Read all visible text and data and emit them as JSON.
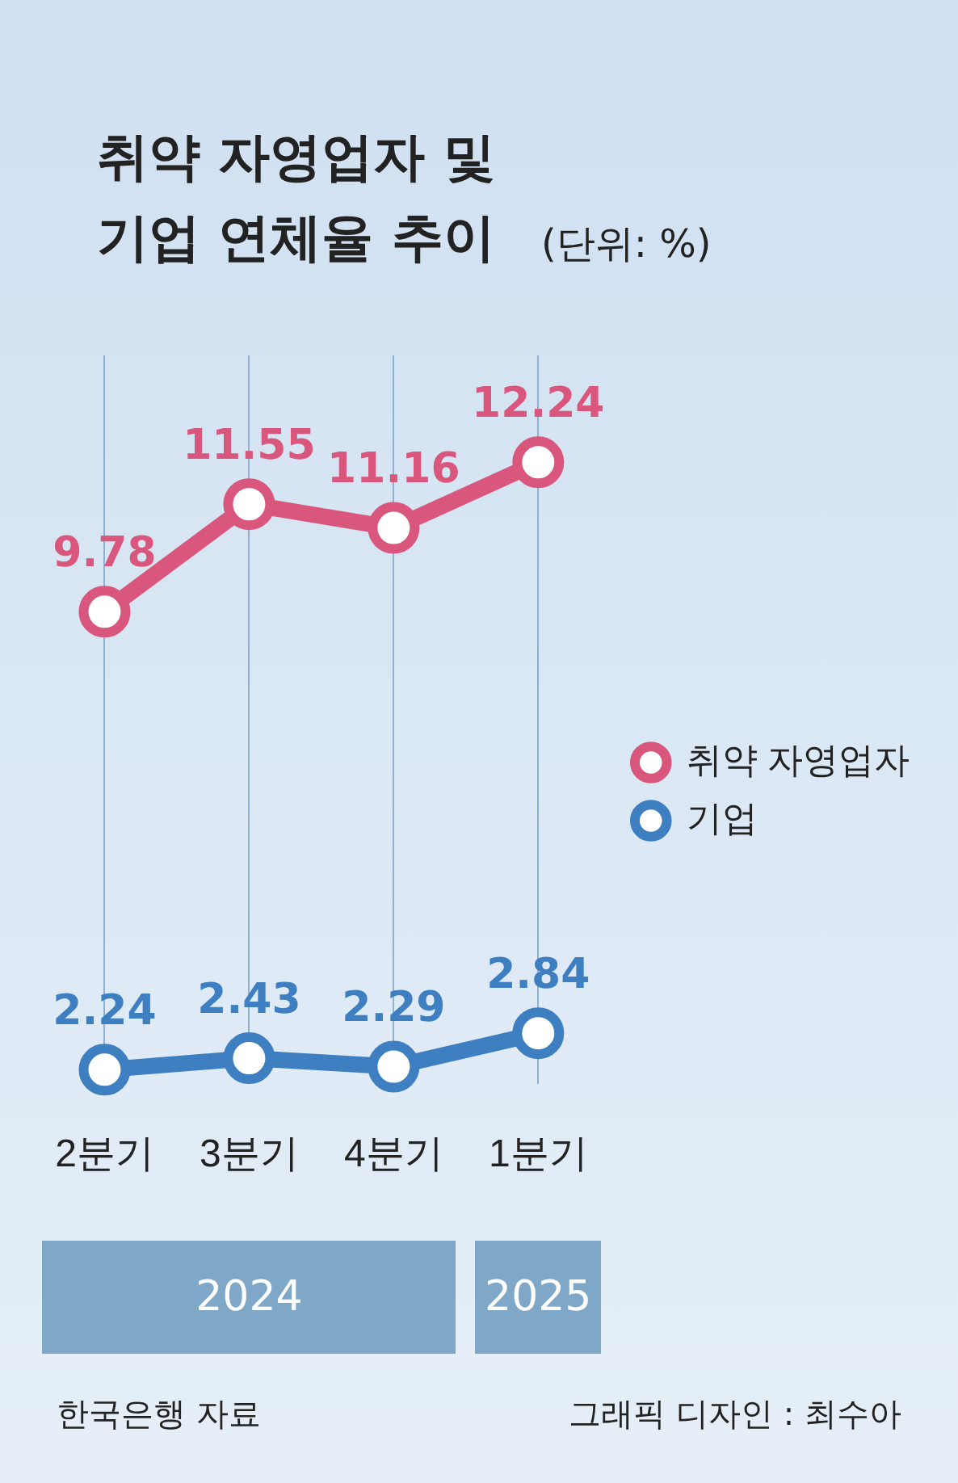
{
  "chart_data": {
    "type": "line",
    "title": "취약 자영업자 및\n기업 연체율 추이",
    "categories": [
      "2분기",
      "3분기",
      "4분기",
      "1분기"
    ],
    "series": [
      {
        "name": "취약 자영업자",
        "color": "#d9577c",
        "values": [
          9.78,
          11.55,
          11.16,
          12.24
        ]
      },
      {
        "name": "기업",
        "color": "#3d7fc1",
        "values": [
          2.24,
          2.43,
          2.29,
          2.84
        ]
      }
    ],
    "data_labels": true,
    "legend": "right",
    "marker": "circle",
    "grid": "x",
    "annotations": [
      "(단위: %)",
      "2024",
      "2025",
      "한국은행 자료",
      "그래픽 디자인 : 최수아"
    ]
  }
}
